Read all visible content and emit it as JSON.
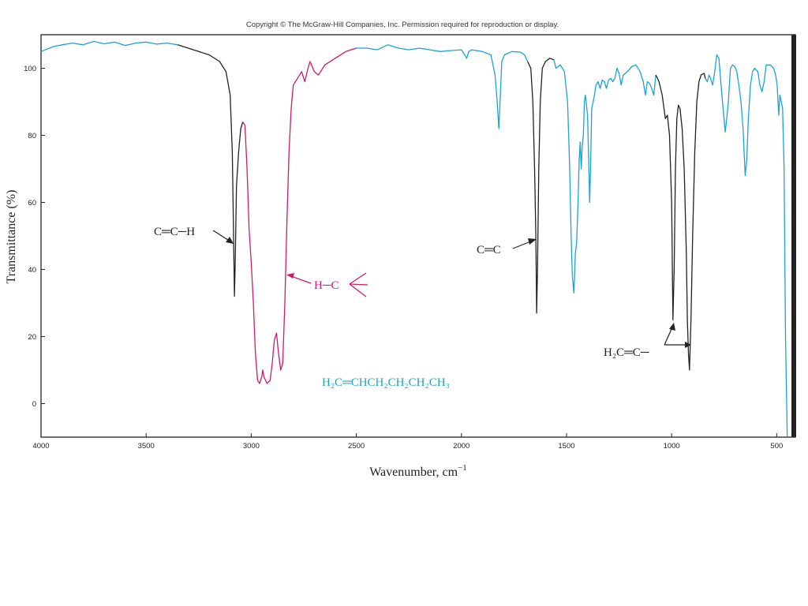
{
  "copyright": "Copyright © The McGraw-Hill Companies, Inc. Permission required for reproduction or display.",
  "colors": {
    "black": "#222222",
    "magenta": "#d4186a",
    "cyan": "#1aa3d6"
  },
  "chart_data": {
    "type": "line",
    "xlabel": "Wavenumber, cm",
    "xlabel_sup": "−1",
    "ylabel": "Transmittance (%)",
    "xlim": [
      4000,
      430
    ],
    "ylim": [
      -10,
      110
    ],
    "x_ticks": [
      "4000",
      "3500",
      "3000",
      "2500",
      "2000",
      "1500",
      "1000",
      "500"
    ],
    "x_tick_values": [
      4000,
      3500,
      3000,
      2500,
      2000,
      1500,
      1000,
      500
    ],
    "y_ticks": [
      "100",
      "80",
      "60",
      "40",
      "20",
      "0"
    ],
    "y_tick_values": [
      100,
      80,
      60,
      40,
      20,
      0
    ],
    "grid": false,
    "series": [
      {
        "color": "cyan",
        "points": [
          [
            4000,
            105
          ],
          [
            3940,
            106.5
          ],
          [
            3900,
            107
          ],
          [
            3850,
            107.5
          ],
          [
            3800,
            107
          ],
          [
            3750,
            108
          ],
          [
            3700,
            107.3
          ],
          [
            3650,
            107.8
          ],
          [
            3600,
            106.8
          ],
          [
            3550,
            107.5
          ],
          [
            3500,
            107.8
          ],
          [
            3450,
            107.2
          ],
          [
            3400,
            107.5
          ],
          [
            3350,
            107
          ]
        ]
      },
      {
        "color": "black",
        "points": [
          [
            3350,
            107
          ],
          [
            3300,
            106
          ],
          [
            3250,
            105
          ],
          [
            3200,
            104
          ],
          [
            3150,
            102
          ],
          [
            3120,
            99
          ],
          [
            3100,
            92
          ],
          [
            3090,
            75
          ],
          [
            3085,
            55
          ],
          [
            3080,
            32
          ],
          [
            3076,
            42
          ],
          [
            3070,
            65
          ],
          [
            3060,
            75
          ],
          [
            3050,
            82
          ],
          [
            3040,
            84
          ]
        ]
      },
      {
        "color": "magenta",
        "points": [
          [
            3040,
            84
          ],
          [
            3030,
            83
          ],
          [
            3020,
            70
          ],
          [
            3010,
            52
          ],
          [
            3000,
            42
          ],
          [
            2990,
            30
          ],
          [
            2980,
            15
          ],
          [
            2970,
            7
          ],
          [
            2960,
            6
          ],
          [
            2950,
            8
          ],
          [
            2945,
            10
          ],
          [
            2940,
            8
          ],
          [
            2925,
            6
          ],
          [
            2910,
            7
          ],
          [
            2900,
            12
          ],
          [
            2890,
            19
          ],
          [
            2880,
            21
          ],
          [
            2870,
            15
          ],
          [
            2860,
            10
          ],
          [
            2850,
            12
          ],
          [
            2840,
            30
          ],
          [
            2830,
            55
          ],
          [
            2820,
            75
          ],
          [
            2810,
            88
          ],
          [
            2800,
            95
          ],
          [
            2780,
            97
          ],
          [
            2760,
            99
          ],
          [
            2745,
            96
          ],
          [
            2730,
            100
          ],
          [
            2720,
            102
          ],
          [
            2700,
            99
          ],
          [
            2680,
            98
          ],
          [
            2650,
            101
          ],
          [
            2600,
            103
          ],
          [
            2550,
            105
          ],
          [
            2500,
            106
          ]
        ]
      },
      {
        "color": "cyan",
        "points": [
          [
            2500,
            106
          ],
          [
            2450,
            106
          ],
          [
            2400,
            105.5
          ],
          [
            2350,
            107
          ],
          [
            2300,
            106
          ],
          [
            2250,
            105.5
          ],
          [
            2200,
            106
          ],
          [
            2150,
            105.5
          ],
          [
            2100,
            105
          ],
          [
            2050,
            105.3
          ],
          [
            2000,
            105.5
          ],
          [
            1985,
            104
          ],
          [
            1975,
            103
          ],
          [
            1965,
            105
          ],
          [
            1950,
            105.5
          ],
          [
            1900,
            105
          ],
          [
            1860,
            104
          ],
          [
            1840,
            98
          ],
          [
            1830,
            90
          ],
          [
            1822,
            82
          ],
          [
            1815,
            92
          ],
          [
            1808,
            102
          ],
          [
            1795,
            104
          ],
          [
            1760,
            105
          ],
          [
            1720,
            104.8
          ],
          [
            1700,
            104
          ],
          [
            1685,
            102
          ]
        ]
      },
      {
        "color": "black",
        "points": [
          [
            1685,
            102
          ],
          [
            1670,
            100
          ],
          [
            1660,
            90
          ],
          [
            1652,
            70
          ],
          [
            1646,
            50
          ],
          [
            1642,
            27
          ],
          [
            1638,
            40
          ],
          [
            1632,
            70
          ],
          [
            1625,
            90
          ],
          [
            1615,
            100
          ],
          [
            1600,
            102
          ],
          [
            1580,
            103
          ],
          [
            1560,
            102.5
          ]
        ]
      },
      {
        "color": "cyan",
        "points": [
          [
            1560,
            102.5
          ],
          [
            1550,
            100
          ],
          [
            1530,
            101
          ],
          [
            1510,
            99
          ],
          [
            1495,
            90
          ],
          [
            1485,
            70
          ],
          [
            1478,
            50
          ],
          [
            1472,
            38
          ],
          [
            1465,
            33
          ],
          [
            1458,
            45
          ],
          [
            1452,
            48
          ],
          [
            1445,
            60
          ],
          [
            1440,
            72
          ],
          [
            1435,
            78
          ],
          [
            1430,
            70
          ],
          [
            1425,
            77
          ],
          [
            1420,
            80
          ],
          [
            1415,
            90
          ],
          [
            1410,
            92
          ],
          [
            1400,
            86
          ],
          [
            1395,
            74
          ],
          [
            1390,
            60
          ],
          [
            1385,
            72
          ],
          [
            1380,
            88
          ],
          [
            1370,
            91
          ],
          [
            1360,
            95
          ],
          [
            1350,
            96
          ],
          [
            1340,
            94
          ],
          [
            1330,
            96.5
          ],
          [
            1320,
            96
          ],
          [
            1310,
            94
          ],
          [
            1300,
            96.5
          ],
          [
            1290,
            97
          ],
          [
            1280,
            96
          ],
          [
            1270,
            97
          ],
          [
            1260,
            100
          ],
          [
            1250,
            98.5
          ],
          [
            1240,
            95
          ],
          [
            1230,
            98
          ],
          [
            1210,
            99
          ],
          [
            1190,
            100.5
          ],
          [
            1170,
            101
          ],
          [
            1150,
            99
          ],
          [
            1135,
            96
          ],
          [
            1125,
            92
          ],
          [
            1115,
            96
          ],
          [
            1105,
            95.5
          ],
          [
            1095,
            94
          ],
          [
            1085,
            92
          ],
          [
            1075,
            98
          ]
        ]
      },
      {
        "color": "black",
        "points": [
          [
            1075,
            98
          ],
          [
            1060,
            96
          ],
          [
            1045,
            92
          ],
          [
            1030,
            85
          ],
          [
            1020,
            86
          ],
          [
            1010,
            80
          ],
          [
            1000,
            60
          ],
          [
            994,
            25
          ],
          [
            988,
            40
          ],
          [
            982,
            70
          ],
          [
            975,
            85
          ],
          [
            968,
            89
          ],
          [
            960,
            88
          ],
          [
            950,
            82
          ],
          [
            940,
            70
          ],
          [
            930,
            45
          ],
          [
            925,
            25
          ],
          [
            920,
            15
          ],
          [
            915,
            10
          ],
          [
            908,
            25
          ],
          [
            900,
            50
          ],
          [
            890,
            75
          ],
          [
            880,
            90
          ],
          [
            870,
            96
          ],
          [
            860,
            98
          ],
          [
            845,
            98.5
          ],
          [
            840,
            97
          ]
        ]
      },
      {
        "color": "cyan",
        "points": [
          [
            840,
            97
          ],
          [
            830,
            96
          ],
          [
            822,
            98
          ],
          [
            815,
            97
          ],
          [
            805,
            95
          ],
          [
            795,
            99
          ],
          [
            785,
            104
          ],
          [
            775,
            103
          ],
          [
            765,
            95
          ],
          [
            755,
            88
          ],
          [
            745,
            81
          ],
          [
            738,
            85
          ],
          [
            730,
            90
          ],
          [
            720,
            100
          ],
          [
            710,
            101
          ],
          [
            700,
            100.5
          ],
          [
            690,
            99
          ],
          [
            680,
            95
          ],
          [
            670,
            90
          ],
          [
            660,
            82
          ],
          [
            650,
            68
          ],
          [
            642,
            73
          ],
          [
            635,
            85
          ],
          [
            625,
            95
          ],
          [
            615,
            99
          ],
          [
            605,
            100
          ],
          [
            590,
            99
          ],
          [
            580,
            95
          ],
          [
            570,
            93
          ],
          [
            560,
            96
          ],
          [
            550,
            101
          ],
          [
            530,
            101
          ],
          [
            515,
            100
          ],
          [
            505,
            98
          ],
          [
            498,
            95
          ],
          [
            494,
            90
          ],
          [
            490,
            86
          ],
          [
            485,
            92
          ],
          [
            478,
            90
          ],
          [
            472,
            88
          ],
          [
            465,
            70
          ],
          [
            458,
            20
          ],
          [
            450,
            -10
          ]
        ]
      }
    ],
    "annotations": [
      {
        "text": "C═C─H",
        "color": "black"
      },
      {
        "text": "H─C",
        "color": "magenta"
      },
      {
        "text": "C═C",
        "color": "black"
      },
      {
        "text": "H₂C═C─",
        "color": "black"
      }
    ],
    "compound_label": {
      "main": "H₂C═CHCH₂CH₂CH₂CH₃",
      "color": "cyan"
    }
  }
}
